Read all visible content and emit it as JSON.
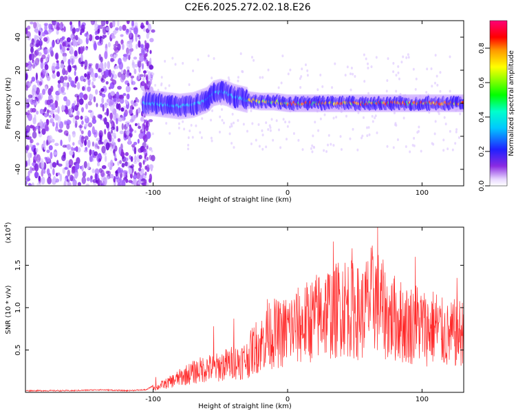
{
  "title": "C2E6.2025.272.02.18.E26",
  "chart_data": [
    {
      "type": "heatmap",
      "xlabel": "Height of straight line (km)",
      "ylabel": "Frequency (Hz)",
      "xlim": [
        -195,
        131
      ],
      "ylim": [
        -50,
        50
      ],
      "xticks": [
        -100,
        0,
        100
      ],
      "yticks": [
        -40,
        -20,
        0,
        20,
        40
      ],
      "colorbar": {
        "label": "Normalized spectral amplitude",
        "range": [
          0,
          0.96
        ],
        "ticks": [
          "0.0",
          "0.2",
          "0.4",
          "0.6",
          "0.8"
        ],
        "colormap": "rainbow (white to violet to blue to cyan to green to yellow to orange to red to magenta)"
      },
      "ridge": {
        "description": "Dominant frequency track vs height",
        "x": [
          -107,
          -100,
          -90,
          -80,
          -70,
          -60,
          -55,
          -50,
          -45,
          -40,
          -30,
          -20,
          -10,
          0,
          20,
          40,
          60,
          80,
          100,
          120,
          131
        ],
        "y": [
          0,
          0,
          -1,
          -2,
          -1,
          2,
          6,
          7,
          6,
          4,
          2,
          1,
          1,
          0,
          0,
          0,
          0,
          0,
          0,
          0,
          0
        ]
      },
      "noise_region": {
        "x_start": -195,
        "x_end": -100,
        "description": "broadband low-amplitude noise"
      }
    },
    {
      "type": "line",
      "xlabel": "Height of straight line (km)",
      "ylabel": "SNR (10 * v/v)",
      "y_multiplier": "(x10^4)",
      "xlim": [
        -195,
        131
      ],
      "ylim": [
        0,
        1.95
      ],
      "xticks": [
        -100,
        0,
        100
      ],
      "yticks": [
        "0.5",
        "1.0",
        "1.5"
      ],
      "color": "#ff2a2a",
      "series": [
        {
          "x": [
            -195,
            -180,
            -160,
            -140,
            -120,
            -105,
            -100,
            -98,
            -95,
            -90,
            -85,
            -80,
            -75,
            -70,
            -65,
            -60,
            -55,
            -50,
            -45,
            -40,
            -35,
            -30,
            -25,
            -20,
            -15,
            -10,
            -5,
            0,
            5,
            10,
            15,
            20,
            25,
            30,
            35,
            40,
            45,
            50,
            55,
            60,
            65,
            70,
            75,
            80,
            85,
            90,
            95,
            100,
            105,
            110,
            115,
            120,
            125,
            131
          ],
          "y": [
            0.02,
            0.02,
            0.02,
            0.03,
            0.02,
            0.03,
            0.08,
            0.05,
            0.09,
            0.12,
            0.16,
            0.2,
            0.24,
            0.27,
            0.3,
            0.33,
            0.32,
            0.35,
            0.38,
            0.4,
            0.42,
            0.45,
            0.6,
            0.65,
            0.75,
            0.8,
            0.78,
            0.85,
            0.88,
            0.9,
            0.95,
            1.0,
            1.05,
            1.1,
            1.08,
            1.2,
            1.15,
            1.1,
            1.05,
            1.2,
            1.3,
            1.15,
            1.0,
            1.0,
            0.95,
            0.9,
            0.95,
            0.9,
            0.85,
            0.9,
            0.8,
            0.75,
            0.8,
            0.8
          ],
          "spikes": [
            {
              "x": -98,
              "y": 0.18
            },
            {
              "x": -55,
              "y": 0.78
            },
            {
              "x": -40,
              "y": 0.87
            },
            {
              "x": -15,
              "y": 1.1
            },
            {
              "x": 34,
              "y": 1.78
            },
            {
              "x": 48,
              "y": 1.7
            },
            {
              "x": 67,
              "y": 1.95
            },
            {
              "x": 95,
              "y": 1.6
            },
            {
              "x": 126,
              "y": 1.35
            }
          ]
        }
      ]
    }
  ]
}
